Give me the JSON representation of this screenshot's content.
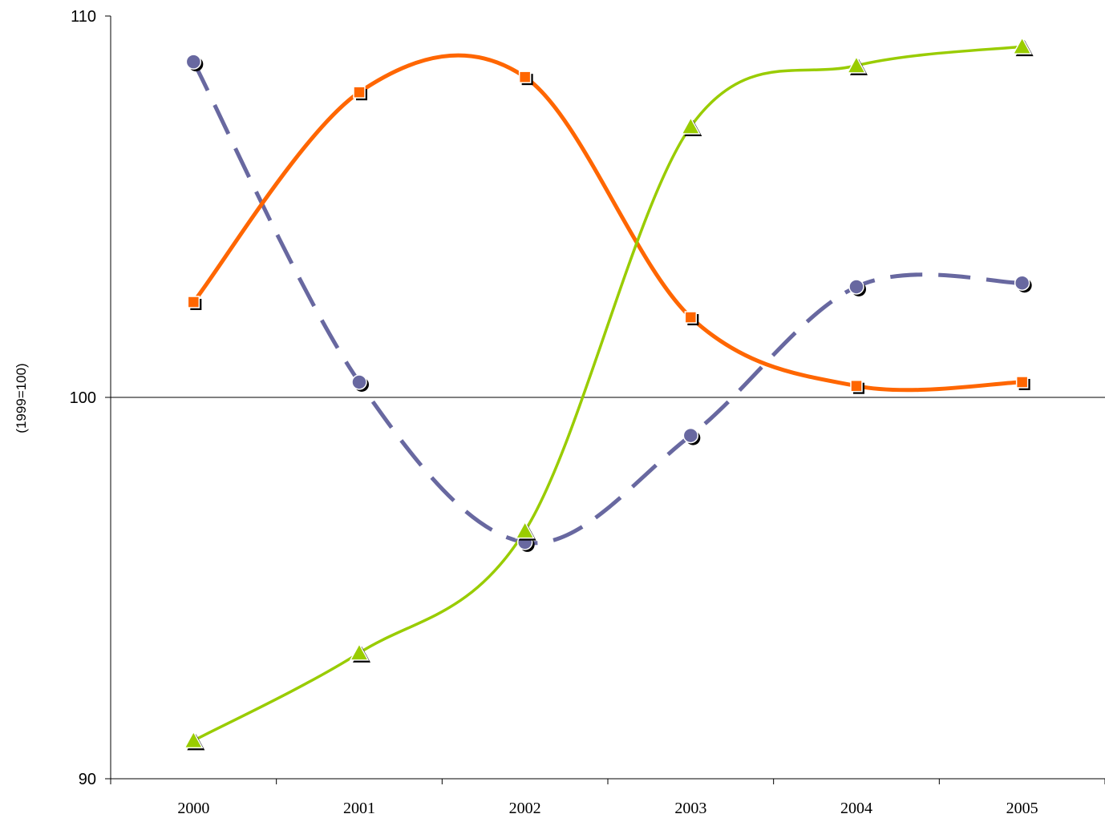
{
  "chart_data": {
    "type": "line",
    "title": "",
    "xlabel": "",
    "ylabel": "(1999=100)",
    "categories": [
      "2000",
      "2001",
      "2002",
      "2003",
      "2004",
      "2005"
    ],
    "ylim": [
      90,
      110
    ],
    "yticks": [
      90,
      100,
      110
    ],
    "grid": false,
    "reference_line": 100,
    "series": [
      {
        "color": "#6868a0",
        "line_style": "dashed",
        "marker": "circle",
        "values": [
          108.8,
          100.4,
          96.2,
          99.0,
          102.9,
          103.0
        ]
      },
      {
        "color": "#ff6600",
        "line_style": "solid",
        "marker": "square",
        "values": [
          102.5,
          108.0,
          108.4,
          102.1,
          100.3,
          100.4
        ]
      },
      {
        "color": "#99cc00",
        "line_style": "solid",
        "marker": "triangle",
        "values": [
          91.0,
          93.3,
          96.5,
          107.1,
          108.7,
          109.2
        ]
      }
    ]
  }
}
